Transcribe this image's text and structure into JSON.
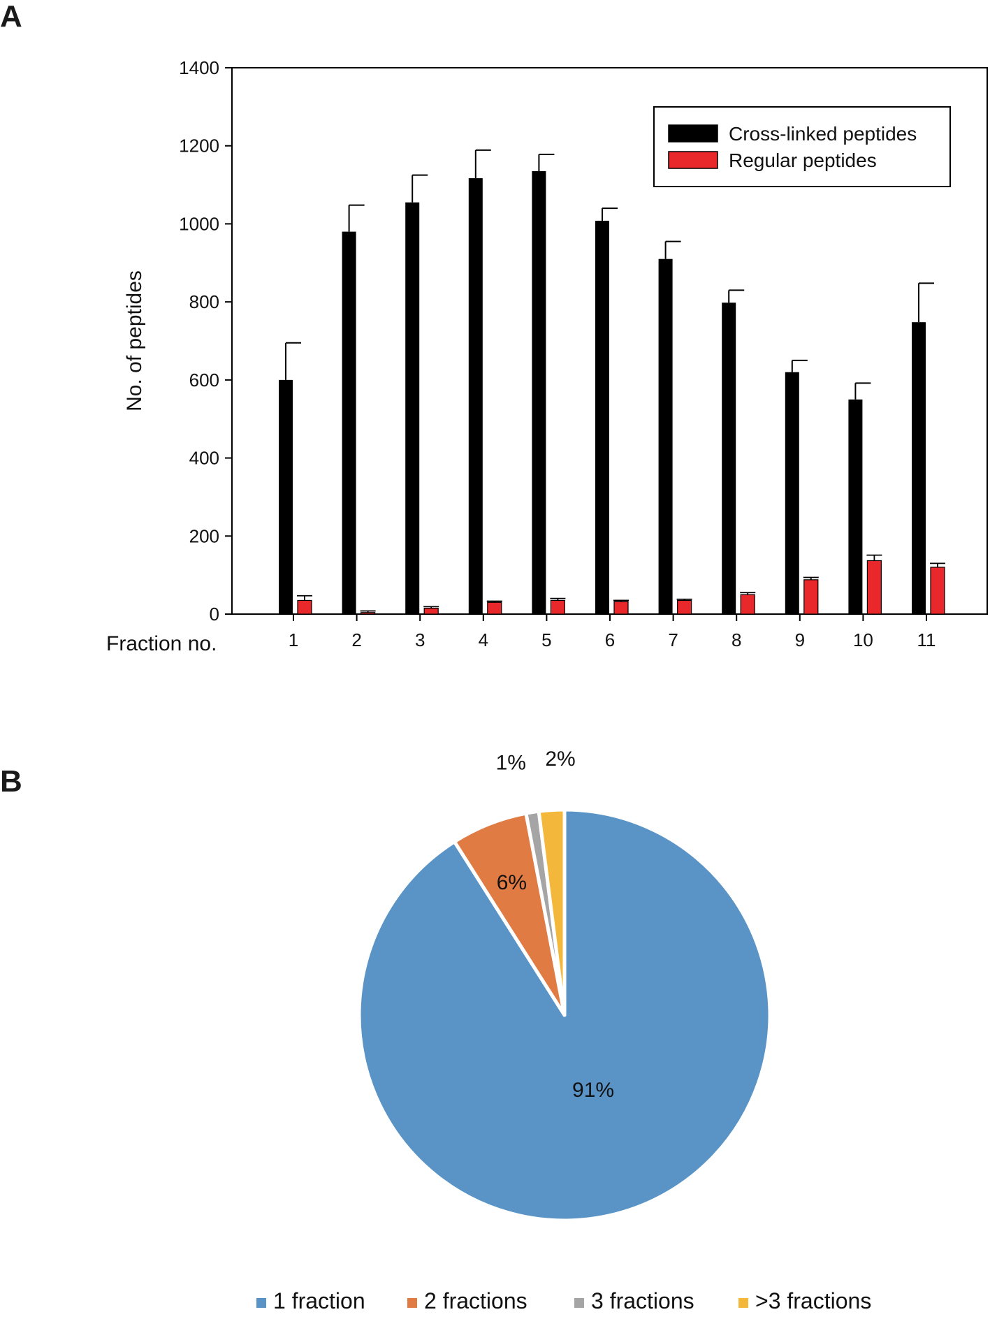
{
  "panels": {
    "a_label": "A",
    "b_label": "B"
  },
  "chart_data": [
    {
      "type": "bar",
      "ylabel": "No. of peptides",
      "xlabel": "Fraction no.",
      "ylim": [
        0,
        1400
      ],
      "yticks": [
        0,
        200,
        400,
        600,
        800,
        1000,
        1200,
        1400
      ],
      "categories": [
        "1",
        "2",
        "3",
        "4",
        "5",
        "6",
        "7",
        "8",
        "9",
        "10",
        "11"
      ],
      "legend_position": "top-right",
      "grid": false,
      "series": [
        {
          "name": "Cross-linked peptides",
          "color": "#000000",
          "values": [
            600,
            980,
            1055,
            1117,
            1135,
            1008,
            910,
            798,
            620,
            550,
            748
          ],
          "error": [
            95,
            68,
            70,
            72,
            43,
            32,
            45,
            32,
            30,
            42,
            100
          ]
        },
        {
          "name": "Regular peptides",
          "color": "#e8282b",
          "values": [
            35,
            4,
            15,
            30,
            35,
            32,
            35,
            50,
            88,
            137,
            120
          ],
          "error": [
            12,
            4,
            4,
            3,
            5,
            3,
            3,
            5,
            6,
            14,
            10
          ]
        }
      ]
    },
    {
      "type": "pie",
      "slices": [
        {
          "name": "1 fraction",
          "value": 91,
          "label": "91%",
          "color": "#5a94c6"
        },
        {
          "name": "2 fractions",
          "value": 6,
          "label": "6%",
          "color": "#e07b44"
        },
        {
          "name": "3 fractions",
          "value": 1,
          "label": "1%",
          "color": "#a5a5a5"
        },
        {
          "name": ">3 fractions",
          "value": 2,
          "label": "2%",
          "color": "#f3b73b"
        }
      ],
      "legend_position": "bottom"
    }
  ]
}
